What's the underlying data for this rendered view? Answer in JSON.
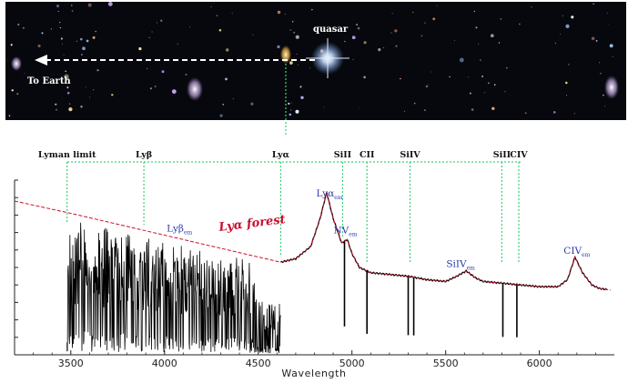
{
  "colors": {
    "spectrum": "#000000",
    "continuum": "#c8102e",
    "emission_labels": "#2b3aa8",
    "absorber_lines": "#3fd07a",
    "sky": "#07080d",
    "quasar_glow": "#9fc8ff"
  },
  "sky_panel": {
    "quasar_label": "quasar",
    "earth_label": "To Earth",
    "arrow_icon": "dashed-left-arrow-icon"
  },
  "chart_data": {
    "type": "line",
    "title": "",
    "xlabel": "Wavelength",
    "ylabel": "",
    "xlim": [
      3200,
      6400
    ],
    "ylim": [
      0,
      1.0
    ],
    "x_ticks": [
      3500,
      4000,
      4500,
      5000,
      5500,
      6000
    ],
    "grid": false,
    "forest_label": "Lyα forest",
    "forest_range": [
      3480,
      4620
    ],
    "continuum": {
      "x": [
        3200,
        3500,
        3700,
        3900,
        4100,
        4300,
        4500,
        4620,
        4700,
        4780,
        4830,
        4865,
        4900,
        4945,
        4975,
        5000,
        5040,
        5100,
        5200,
        5300,
        5400,
        5500,
        5560,
        5610,
        5660,
        5700,
        5800,
        5900,
        6000,
        6100,
        6150,
        6190,
        6230,
        6280,
        6320,
        6380
      ],
      "y": [
        0.88,
        0.81,
        0.76,
        0.71,
        0.66,
        0.61,
        0.56,
        0.53,
        0.55,
        0.62,
        0.78,
        0.93,
        0.78,
        0.64,
        0.66,
        0.58,
        0.5,
        0.47,
        0.46,
        0.45,
        0.43,
        0.42,
        0.45,
        0.48,
        0.44,
        0.42,
        0.41,
        0.4,
        0.39,
        0.39,
        0.43,
        0.56,
        0.47,
        0.4,
        0.38,
        0.37
      ]
    },
    "absorption_lines": [
      {
        "ion": "SiII",
        "x": 4960
      },
      {
        "ion": "CII",
        "x": 5080
      },
      {
        "ion": "SiIV",
        "x": 5300
      },
      {
        "ion": "SiIV",
        "x": 5330
      },
      {
        "ion": "SiII",
        "x": 5805
      },
      {
        "ion": "CIV",
        "x": 5880
      }
    ],
    "absorber_labels": [
      {
        "text": "Lyman limit",
        "x": 3480
      },
      {
        "text": "Lyβ",
        "x": 3890
      },
      {
        "text": "Lyα",
        "x": 4620
      },
      {
        "text": "SiII",
        "x": 4950
      },
      {
        "text": "CII",
        "x": 5080
      },
      {
        "text": "SiIV",
        "x": 5310
      },
      {
        "text": "SiII",
        "x": 5800
      },
      {
        "text": "CIV",
        "x": 5890
      }
    ],
    "emission_labels": [
      {
        "ion": "Lyβ",
        "sub": "em",
        "x": 4080
      },
      {
        "ion": "Lyα",
        "sub": "em",
        "x": 4880
      },
      {
        "ion": "NV",
        "sub": "em",
        "x": 4965
      },
      {
        "ion": "SiIV",
        "sub": "em",
        "x": 5580
      },
      {
        "ion": "CIV",
        "sub": "em",
        "x": 6200
      }
    ]
  }
}
